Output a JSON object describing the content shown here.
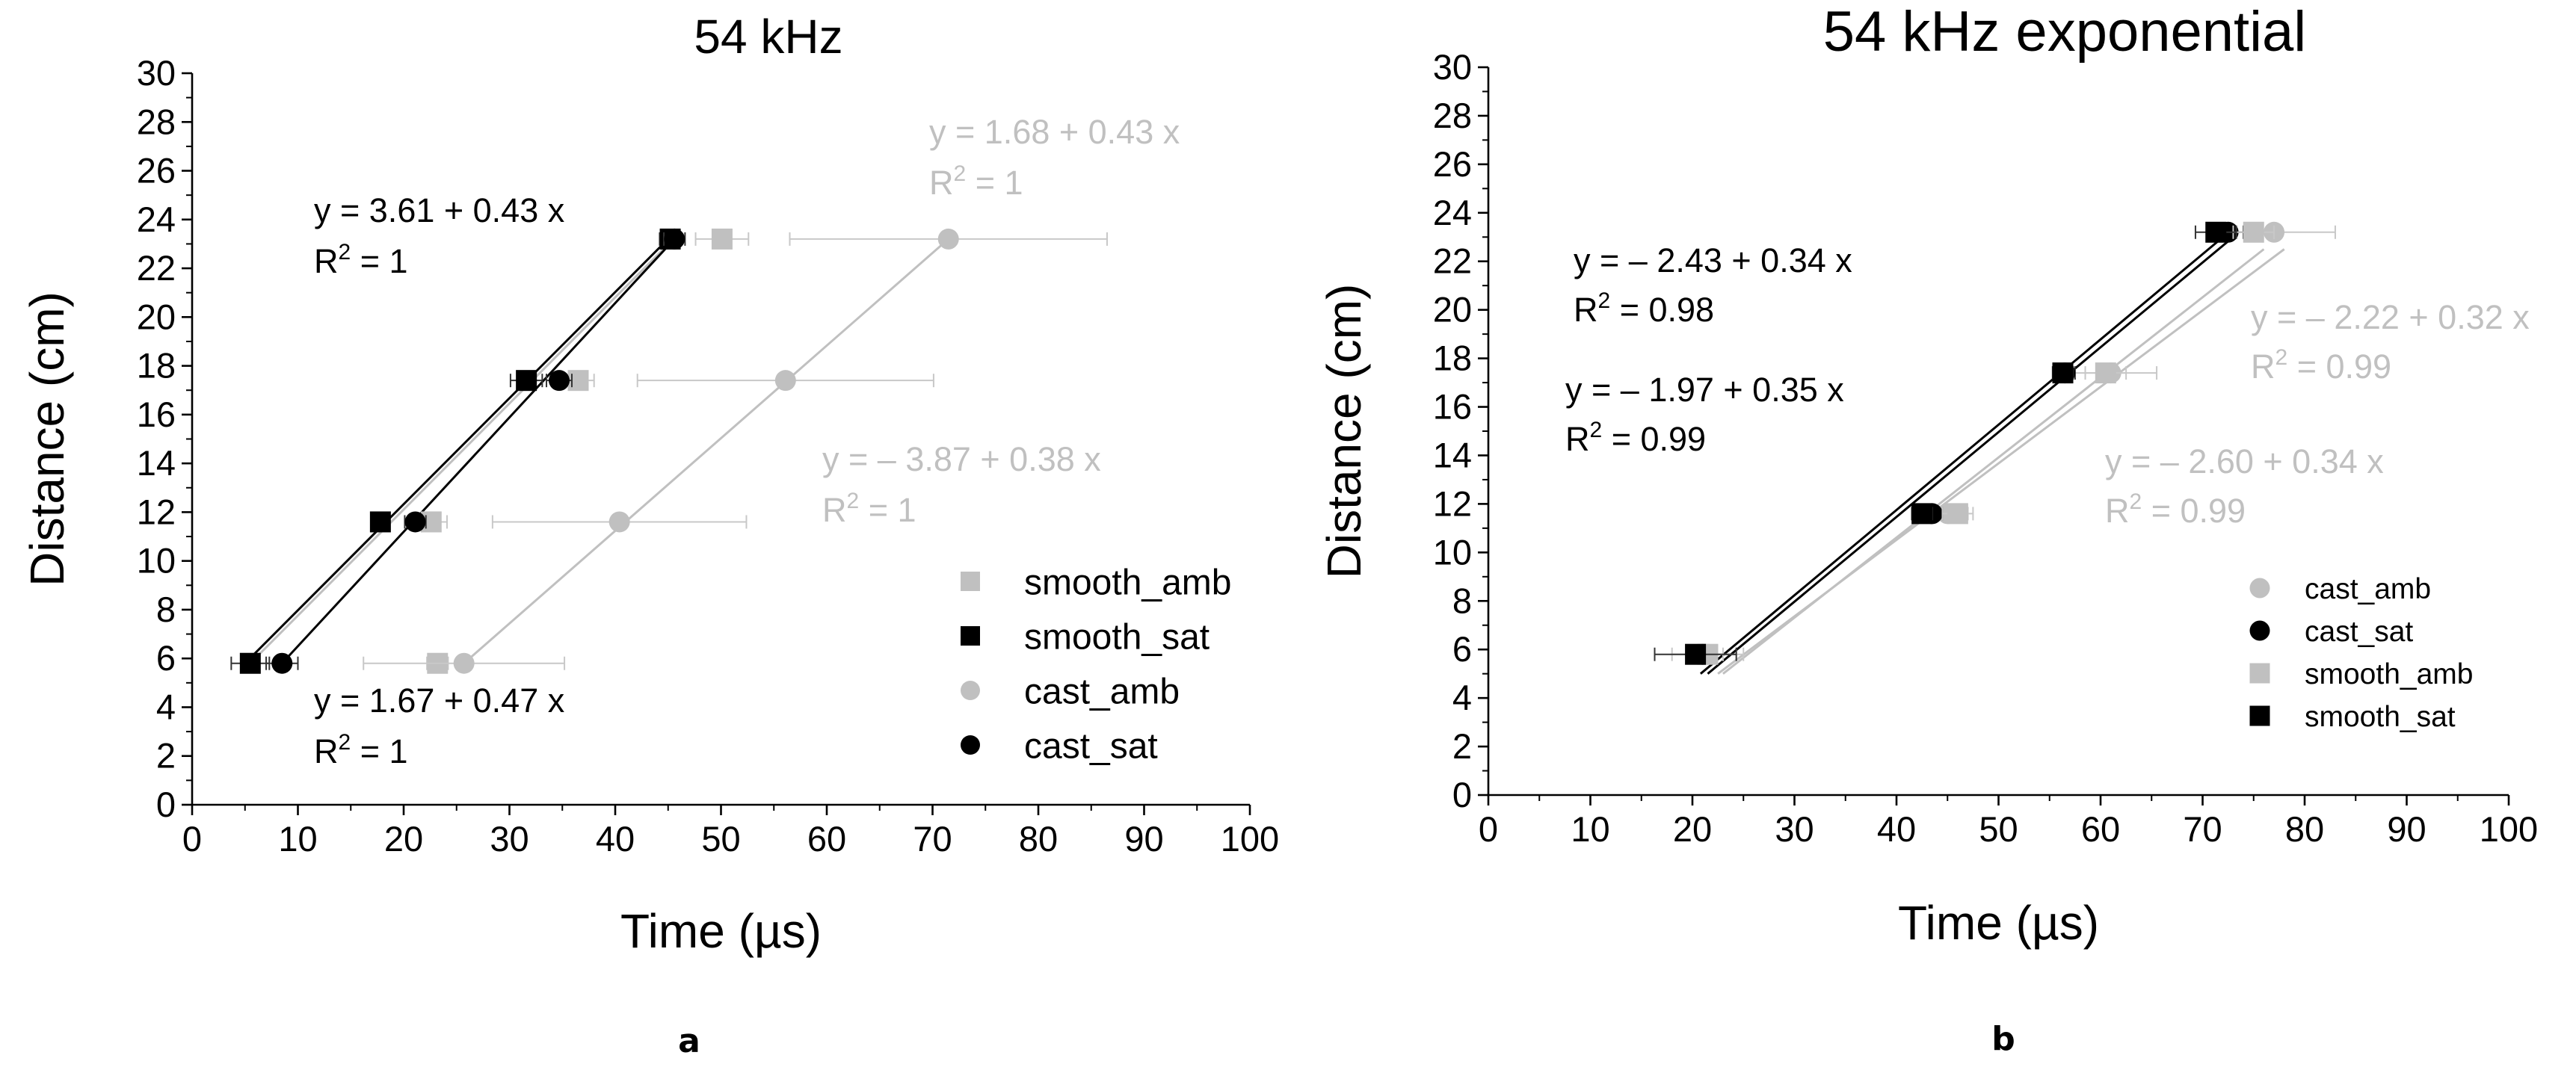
{
  "chart_data": [
    {
      "panel": "a",
      "type": "scatter",
      "title": "54 kHz",
      "xlabel": "Time (µs)",
      "ylabel": "Distance (cm)",
      "xlim": [
        0,
        100
      ],
      "ylim": [
        0,
        30
      ],
      "xticks": [
        "0",
        "10",
        "20",
        "30",
        "40",
        "50",
        "60",
        "70",
        "80",
        "90",
        "100"
      ],
      "yticks": [
        "0",
        "2",
        "4",
        "6",
        "8",
        "10",
        "12",
        "14",
        "16",
        "18",
        "20",
        "22",
        "24",
        "26",
        "28",
        "30"
      ],
      "panel_label": "a",
      "series": [
        {
          "name": "smooth_amb",
          "marker": "square",
          "color": "#c0c0c0",
          "points": [
            {
              "x": 23.2,
              "y": 5.8,
              "err": 1.0
            },
            {
              "x": 22.6,
              "y": 11.6,
              "err": 1.5
            },
            {
              "x": 36.5,
              "y": 17.4,
              "err": 1.5
            },
            {
              "x": 50.1,
              "y": 23.2,
              "err": 2.5
            }
          ],
          "fit": {
            "x": [
              5.5,
              45.5
            ],
            "y": [
              5.8,
              23.2
            ]
          }
        },
        {
          "name": "smooth_sat",
          "marker": "square",
          "color": "#000000",
          "points": [
            {
              "x": 5.5,
              "y": 5.8,
              "err": 1.8
            },
            {
              "x": 17.8,
              "y": 11.6,
              "err": 0.8
            },
            {
              "x": 31.6,
              "y": 17.4,
              "err": 1.5
            },
            {
              "x": 45.2,
              "y": 23.2,
              "err": 1.0
            }
          ],
          "fit": {
            "x": [
              5.0,
              45.0
            ],
            "y": [
              5.8,
              23.2
            ]
          }
        },
        {
          "name": "cast_amb",
          "marker": "circle",
          "color": "#c0c0c0",
          "points": [
            {
              "x": 25.7,
              "y": 5.8,
              "err": 9.5
            },
            {
              "x": 40.4,
              "y": 11.6,
              "err": 12.0
            },
            {
              "x": 56.1,
              "y": 17.4,
              "err": 14.0
            },
            {
              "x": 71.5,
              "y": 23.2,
              "err": 15.0
            }
          ],
          "fit": {
            "x": [
              25.7,
              71.5
            ],
            "y": [
              5.8,
              23.2
            ]
          }
        },
        {
          "name": "cast_sat",
          "marker": "circle",
          "color": "#000000",
          "points": [
            {
              "x": 8.5,
              "y": 5.8,
              "err": 1.5
            },
            {
              "x": 21.1,
              "y": 11.6,
              "err": 1.0
            },
            {
              "x": 34.7,
              "y": 17.4,
              "err": 1.2
            },
            {
              "x": 45.6,
              "y": 23.2,
              "err": 1.0
            }
          ],
          "fit": {
            "x": [
              8.5,
              45.6
            ],
            "y": [
              5.8,
              23.2
            ]
          }
        }
      ],
      "legend": [
        "smooth_amb",
        "smooth_sat",
        "cast_amb",
        "cast_sat"
      ],
      "annotations": [
        {
          "eq": "y = 3.61 + 0.43 x",
          "r2": "= 1",
          "color": "#000000"
        },
        {
          "eq": "y = 1.68 + 0.43 x",
          "r2": "= 1",
          "color": "#c0c0c0"
        },
        {
          "eq": "y = – 3.87 + 0.38 x",
          "r2": "= 1",
          "color": "#c0c0c0"
        },
        {
          "eq": "y = 1.67 + 0.47 x",
          "r2": "= 1",
          "color": "#000000"
        }
      ]
    },
    {
      "panel": "b",
      "type": "scatter",
      "title": "54 kHz exponential",
      "xlabel": "Time (µs)",
      "ylabel": "Distance (cm)",
      "xlim": [
        0,
        100
      ],
      "ylim": [
        0,
        30
      ],
      "xticks": [
        "0",
        "10",
        "20",
        "30",
        "40",
        "50",
        "60",
        "70",
        "80",
        "90",
        "100"
      ],
      "yticks": [
        "0",
        "2",
        "4",
        "6",
        "8",
        "10",
        "12",
        "14",
        "16",
        "18",
        "20",
        "22",
        "24",
        "26",
        "28",
        "30"
      ],
      "panel_label": "b",
      "series": [
        {
          "name": "cast_amb",
          "marker": "circle",
          "color": "#c0c0c0",
          "points": [
            {
              "x": 21.5,
              "y": 5.8,
              "err": 3.5
            },
            {
              "x": 45.0,
              "y": 11.6,
              "err": 2.0
            },
            {
              "x": 61.0,
              "y": 17.4,
              "err": 4.5
            },
            {
              "x": 77.0,
              "y": 23.2,
              "err": 6.0
            }
          ],
          "fit": {
            "x": [
              22.5,
              78.0
            ],
            "y": [
              5.0,
              22.5
            ]
          }
        },
        {
          "name": "cast_sat",
          "marker": "circle",
          "color": "#000000",
          "points": [
            {
              "x": 21.0,
              "y": 5.8,
              "err": 1.0
            },
            {
              "x": 43.5,
              "y": 11.6,
              "err": 1.0
            },
            {
              "x": 56.5,
              "y": 17.4,
              "err": 1.0
            },
            {
              "x": 72.5,
              "y": 23.2,
              "err": 1.5
            }
          ],
          "fit": {
            "x": [
              21.5,
              73.0
            ],
            "y": [
              5.0,
              23.0
            ]
          }
        },
        {
          "name": "smooth_amb",
          "marker": "square",
          "color": "#c0c0c0",
          "points": [
            {
              "x": 21.5,
              "y": 5.8,
              "err": 1.5
            },
            {
              "x": 46.0,
              "y": 11.6,
              "err": 1.5
            },
            {
              "x": 60.5,
              "y": 17.4,
              "err": 2.0
            },
            {
              "x": 75.0,
              "y": 23.2,
              "err": 2.0
            }
          ],
          "fit": {
            "x": [
              23.0,
              76.0
            ],
            "y": [
              5.0,
              22.5
            ]
          }
        },
        {
          "name": "smooth_sat",
          "marker": "square",
          "color": "#000000",
          "points": [
            {
              "x": 20.3,
              "y": 5.8,
              "err": 4.0
            },
            {
              "x": 42.5,
              "y": 11.6,
              "err": 1.0
            },
            {
              "x": 56.3,
              "y": 17.4,
              "err": 1.0
            },
            {
              "x": 71.3,
              "y": 23.2,
              "err": 2.0
            }
          ],
          "fit": {
            "x": [
              20.8,
              72.0
            ],
            "y": [
              5.0,
              23.0
            ]
          }
        }
      ],
      "legend": [
        "cast_amb",
        "cast_sat",
        "smooth_amb",
        "smooth_sat"
      ],
      "annotations": [
        {
          "eq": "y = – 2.43 + 0.34 x",
          "r2": "= 0.98",
          "color": "#000000"
        },
        {
          "eq": "y = – 1.97 + 0.35 x",
          "r2": "= 0.99",
          "color": "#000000"
        },
        {
          "eq": "y = – 2.22 + 0.32 x",
          "r2": "= 0.99",
          "color": "#c0c0c0"
        },
        {
          "eq": "y = – 2.60 + 0.34 x",
          "r2": "= 0.99",
          "color": "#c0c0c0"
        }
      ]
    }
  ]
}
